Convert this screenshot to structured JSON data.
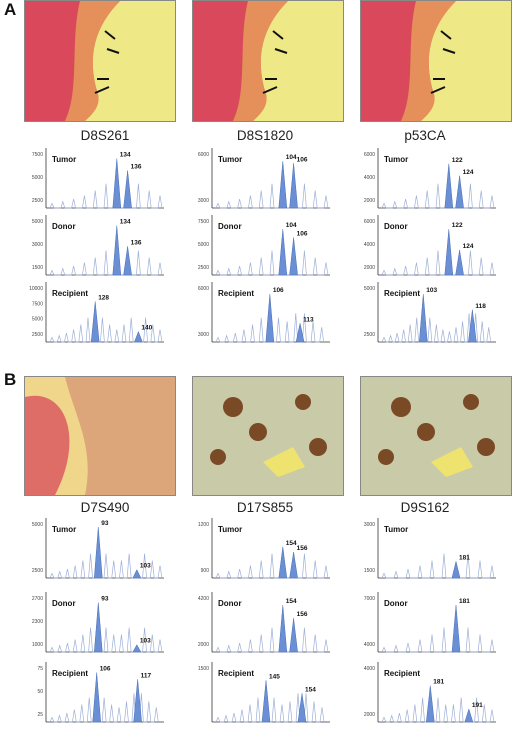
{
  "figure": {
    "panel_a_letter": "A",
    "panel_b_letter": "B"
  },
  "chart_data": [
    {
      "type": "area",
      "panel": "A",
      "marker": "D8S261",
      "sample": "Tumor",
      "y_ticks": [
        "7500",
        "5000",
        "2500"
      ],
      "peaks": [
        {
          "label": "134",
          "x": 134,
          "value": 0.95
        },
        {
          "label": "136",
          "x": 136,
          "value": 0.72
        }
      ]
    },
    {
      "type": "area",
      "panel": "A",
      "marker": "D8S261",
      "sample": "Donor",
      "y_ticks": [
        "5000",
        "3000",
        "1500"
      ],
      "peaks": [
        {
          "label": "134",
          "x": 134,
          "value": 0.95
        },
        {
          "label": "136",
          "x": 136,
          "value": 0.55
        }
      ]
    },
    {
      "type": "area",
      "panel": "A",
      "marker": "D8S261",
      "sample": "Recipient",
      "y_ticks": [
        "10000",
        "7500",
        "5000",
        "2500"
      ],
      "peaks": [
        {
          "label": "128",
          "x": 128,
          "value": 0.78
        },
        {
          "label": "140",
          "x": 140,
          "value": 0.2
        }
      ]
    },
    {
      "type": "area",
      "panel": "A",
      "marker": "D8S1820",
      "sample": "Tumor",
      "y_ticks": [
        "6000",
        "3000"
      ],
      "peaks": [
        {
          "label": "104",
          "x": 104,
          "value": 0.9
        },
        {
          "label": "106",
          "x": 106,
          "value": 0.86
        }
      ]
    },
    {
      "type": "area",
      "panel": "A",
      "marker": "D8S1820",
      "sample": "Donor",
      "y_ticks": [
        "7500",
        "5000",
        "2500"
      ],
      "peaks": [
        {
          "label": "104",
          "x": 104,
          "value": 0.88
        },
        {
          "label": "106",
          "x": 106,
          "value": 0.72
        }
      ]
    },
    {
      "type": "area",
      "panel": "A",
      "marker": "D8S1820",
      "sample": "Recipient",
      "y_ticks": [
        "6000",
        "3000"
      ],
      "peaks": [
        {
          "label": "106",
          "x": 106,
          "value": 0.92
        },
        {
          "label": "113",
          "x": 113,
          "value": 0.36
        }
      ]
    },
    {
      "type": "area",
      "panel": "A",
      "marker": "p53CA",
      "sample": "Tumor",
      "y_ticks": [
        "6000",
        "4000",
        "2000"
      ],
      "peaks": [
        {
          "label": "122",
          "x": 122,
          "value": 0.85
        },
        {
          "label": "124",
          "x": 124,
          "value": 0.62
        }
      ]
    },
    {
      "type": "area",
      "panel": "A",
      "marker": "p53CA",
      "sample": "Donor",
      "y_ticks": [
        "6000",
        "4000",
        "2000"
      ],
      "peaks": [
        {
          "label": "122",
          "x": 122,
          "value": 0.88
        },
        {
          "label": "124",
          "x": 124,
          "value": 0.48
        }
      ]
    },
    {
      "type": "area",
      "panel": "A",
      "marker": "p53CA",
      "sample": "Recipient",
      "y_ticks": [
        "5000",
        "2500"
      ],
      "peaks": [
        {
          "label": "103",
          "x": 103,
          "value": 0.92
        },
        {
          "label": "118",
          "x": 118,
          "value": 0.62
        }
      ]
    },
    {
      "type": "area",
      "panel": "B",
      "marker": "D7S490",
      "sample": "Tumor",
      "y_ticks": [
        "5000",
        "2500"
      ],
      "peaks": [
        {
          "label": "93",
          "x": 93,
          "value": 0.98
        },
        {
          "label": "103",
          "x": 103,
          "value": 0.16
        }
      ]
    },
    {
      "type": "area",
      "panel": "B",
      "marker": "D7S490",
      "sample": "Donor",
      "y_ticks": [
        "2700",
        "2300",
        "1000"
      ],
      "peaks": [
        {
          "label": "93",
          "x": 93,
          "value": 0.95
        },
        {
          "label": "103",
          "x": 103,
          "value": 0.14
        }
      ]
    },
    {
      "type": "area",
      "panel": "B",
      "marker": "D7S490",
      "sample": "Recipient",
      "y_ticks": [
        "75",
        "50",
        "25"
      ],
      "peaks": [
        {
          "label": "106",
          "x": 106,
          "value": 0.95
        },
        {
          "label": "117",
          "x": 117,
          "value": 0.82
        }
      ]
    },
    {
      "type": "area",
      "panel": "B",
      "marker": "D17S855",
      "sample": "Tumor",
      "y_ticks": [
        "1200",
        "900"
      ],
      "peaks": [
        {
          "label": "154",
          "x": 154,
          "value": 0.6
        },
        {
          "label": "156",
          "x": 156,
          "value": 0.5
        }
      ]
    },
    {
      "type": "area",
      "panel": "B",
      "marker": "D17S855",
      "sample": "Donor",
      "y_ticks": [
        "4200",
        "2000"
      ],
      "peaks": [
        {
          "label": "154",
          "x": 154,
          "value": 0.9
        },
        {
          "label": "156",
          "x": 156,
          "value": 0.65
        }
      ]
    },
    {
      "type": "area",
      "panel": "B",
      "marker": "D17S855",
      "sample": "Recipient",
      "y_ticks": [
        "1500"
      ],
      "peaks": [
        {
          "label": "145",
          "x": 145,
          "value": 0.8
        },
        {
          "label": "154",
          "x": 154,
          "value": 0.55
        }
      ]
    },
    {
      "type": "area",
      "panel": "B",
      "marker": "D9S162",
      "sample": "Tumor",
      "y_ticks": [
        "3000",
        "1500"
      ],
      "peaks": [
        {
          "label": "181",
          "x": 181,
          "value": 0.32
        }
      ]
    },
    {
      "type": "area",
      "panel": "B",
      "marker": "D9S162",
      "sample": "Donor",
      "y_ticks": [
        "7000",
        "4000"
      ],
      "peaks": [
        {
          "label": "181",
          "x": 181,
          "value": 0.9
        }
      ]
    },
    {
      "type": "area",
      "panel": "B",
      "marker": "D9S162",
      "sample": "Recipient",
      "y_ticks": [
        "4000",
        "2000"
      ],
      "peaks": [
        {
          "label": "181",
          "x": 181,
          "value": 0.7
        },
        {
          "label": "191",
          "x": 191,
          "value": 0.25
        }
      ]
    }
  ]
}
